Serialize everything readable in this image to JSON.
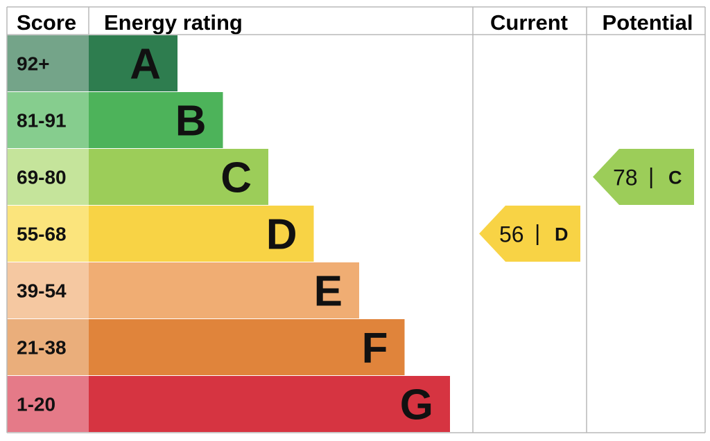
{
  "chart_data": {
    "type": "epc-energy-rating",
    "headers": {
      "score": "Score",
      "rating": "Energy rating",
      "current": "Current",
      "potential": "Potential"
    },
    "bands": [
      {
        "letter": "A",
        "range": "92+",
        "min": 92,
        "max": 100,
        "color": "#2e7d4f",
        "score_bg": "#74a489"
      },
      {
        "letter": "B",
        "range": "81-91",
        "min": 81,
        "max": 91,
        "color": "#4db35a",
        "score_bg": "#86cd8e"
      },
      {
        "letter": "C",
        "range": "69-80",
        "min": 69,
        "max": 80,
        "color": "#9ccd59",
        "score_bg": "#c5e49b"
      },
      {
        "letter": "D",
        "range": "55-68",
        "min": 55,
        "max": 68,
        "color": "#f8d345",
        "score_bg": "#fbe47c"
      },
      {
        "letter": "E",
        "range": "39-54",
        "min": 39,
        "max": 54,
        "color": "#f0ad73",
        "score_bg": "#f5c8a1"
      },
      {
        "letter": "F",
        "range": "21-38",
        "min": 21,
        "max": 38,
        "color": "#e0843b",
        "score_bg": "#eaae7b"
      },
      {
        "letter": "G",
        "range": "1-20",
        "min": 1,
        "max": 20,
        "color": "#d63441",
        "score_bg": "#e57a88"
      }
    ],
    "current": {
      "value": 56,
      "band": "D",
      "separator": "|",
      "color": "#f8d345"
    },
    "potential": {
      "value": 78,
      "band": "C",
      "separator": "|",
      "color": "#9ccd59"
    }
  }
}
